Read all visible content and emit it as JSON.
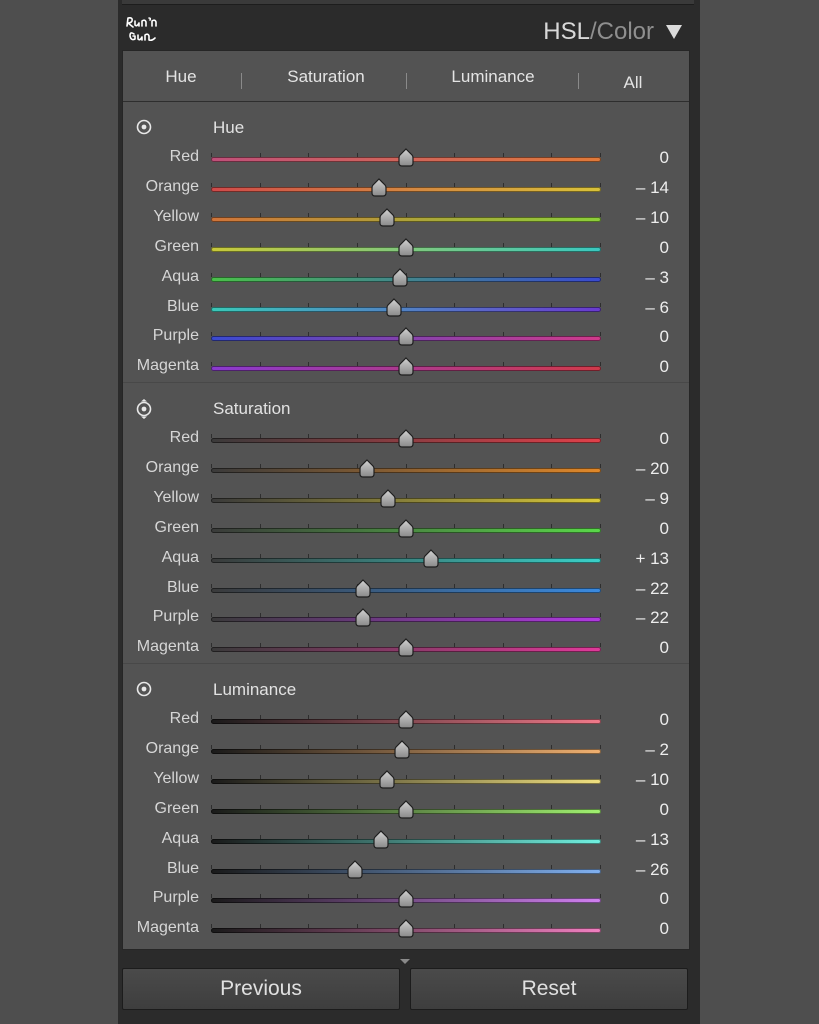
{
  "panel": {
    "title_main": "HSL",
    "title_sep": "/",
    "title_alt": "Color",
    "logo_text": "Run'n Gun"
  },
  "tabs": [
    {
      "label": "Hue"
    },
    {
      "label": "Saturation"
    },
    {
      "label": "Luminance"
    },
    {
      "label": "All"
    }
  ],
  "sections": [
    {
      "title": "Hue",
      "rows": [
        {
          "label": "Red",
          "value": "0",
          "level": 0,
          "colors": [
            "#c0507a",
            "#e07a3a"
          ]
        },
        {
          "label": "Orange",
          "value": "– 14",
          "level": -14,
          "colors": [
            "#d04a4a",
            "#d8c23a"
          ]
        },
        {
          "label": "Yellow",
          "value": "– 10",
          "level": -10,
          "colors": [
            "#d0743a",
            "#8ccf3a"
          ]
        },
        {
          "label": "Green",
          "value": "0",
          "level": 0,
          "colors": [
            "#c8c83a",
            "#3ac8c0"
          ]
        },
        {
          "label": "Aqua",
          "value": "– 3",
          "level": -3,
          "colors": [
            "#4ac04a",
            "#3a4ad0"
          ]
        },
        {
          "label": "Blue",
          "value": "– 6",
          "level": -6,
          "colors": [
            "#3ac8b8",
            "#6a3ad0"
          ]
        },
        {
          "label": "Purple",
          "value": "0",
          "level": 0,
          "colors": [
            "#3a4ad0",
            "#d03a8a"
          ]
        },
        {
          "label": "Magenta",
          "value": "0",
          "level": 0,
          "colors": [
            "#8a3ad0",
            "#d03a4a"
          ]
        }
      ]
    },
    {
      "title": "Saturation",
      "rows": [
        {
          "label": "Red",
          "value": "0",
          "level": 0,
          "colors": [
            "#3a3a3a",
            "#e0404a"
          ]
        },
        {
          "label": "Orange",
          "value": "– 20",
          "level": -20,
          "colors": [
            "#3a3a3a",
            "#e0882a"
          ]
        },
        {
          "label": "Yellow",
          "value": "– 9",
          "level": -9,
          "colors": [
            "#3a3a3a",
            "#d8c83a"
          ]
        },
        {
          "label": "Green",
          "value": "0",
          "level": 0,
          "colors": [
            "#3a3a3a",
            "#5ad84a"
          ]
        },
        {
          "label": "Aqua",
          "value": "+ 13",
          "level": 13,
          "colors": [
            "#3a3a3a",
            "#3ad0c8"
          ]
        },
        {
          "label": "Blue",
          "value": "– 22",
          "level": -22,
          "colors": [
            "#3a3a3a",
            "#3a8ae0"
          ]
        },
        {
          "label": "Purple",
          "value": "– 22",
          "level": -22,
          "colors": [
            "#3a3a3a",
            "#b03ae0"
          ]
        },
        {
          "label": "Magenta",
          "value": "0",
          "level": 0,
          "colors": [
            "#3a3a3a",
            "#e03a9a"
          ]
        }
      ]
    },
    {
      "title": "Luminance",
      "rows": [
        {
          "label": "Red",
          "value": "0",
          "level": 0,
          "colors": [
            "#1a1a1a",
            "#f07a8a"
          ]
        },
        {
          "label": "Orange",
          "value": "– 2",
          "level": -2,
          "colors": [
            "#1a1a1a",
            "#f0b070"
          ]
        },
        {
          "label": "Yellow",
          "value": "– 10",
          "level": -10,
          "colors": [
            "#1a1a1a",
            "#f0e080"
          ]
        },
        {
          "label": "Green",
          "value": "0",
          "level": 0,
          "colors": [
            "#1a1a1a",
            "#a0f070"
          ]
        },
        {
          "label": "Aqua",
          "value": "– 13",
          "level": -13,
          "colors": [
            "#1a1a1a",
            "#70f0e0"
          ]
        },
        {
          "label": "Blue",
          "value": "– 26",
          "level": -26,
          "colors": [
            "#1a1a1a",
            "#80b0f0"
          ]
        },
        {
          "label": "Purple",
          "value": "0",
          "level": 0,
          "colors": [
            "#1a1a1a",
            "#d080f0"
          ]
        },
        {
          "label": "Magenta",
          "value": "0",
          "level": 0,
          "colors": [
            "#1a1a1a",
            "#f080c0"
          ]
        }
      ]
    }
  ],
  "buttons": {
    "previous": "Previous",
    "reset": "Reset"
  },
  "icons": {
    "target": "target-adjustment-icon",
    "collapse": "triangle-down-icon"
  }
}
